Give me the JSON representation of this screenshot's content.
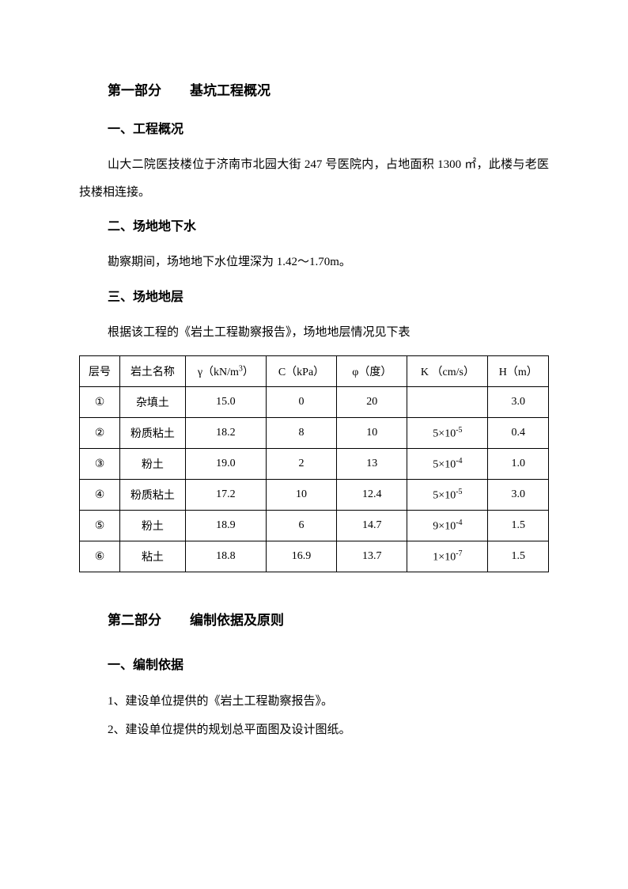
{
  "part1": {
    "title_prefix": "第一部分",
    "title_main": "基坑工程概况",
    "s1": {
      "heading": "一、工程概况",
      "text": "山大二院医技楼位于济南市北园大街 247 号医院内，占地面积 1300 ㎡，此楼与老医技楼相连接。"
    },
    "s2": {
      "heading": "二、场地地下水",
      "text": "勘察期间，场地地下水位埋深为 1.42～1.70m。"
    },
    "s3": {
      "heading": "三、场地地层",
      "intro": "根据该工程的《岩土工程勘察报告》，场地地层情况见下表"
    }
  },
  "table": {
    "columns": [
      {
        "label": "层号",
        "width": "8%"
      },
      {
        "label": "岩土名称",
        "width": "13%"
      },
      {
        "label": "γ（kN/m³）",
        "width": "16%"
      },
      {
        "label": "C（kPa）",
        "width": "14%"
      },
      {
        "label": "φ（度）",
        "width": "14%"
      },
      {
        "label": "K （cm/s）",
        "width": "16%"
      },
      {
        "label": "H（m）",
        "width": "12%"
      }
    ],
    "rows": [
      {
        "layer": "①",
        "name": "杂填土",
        "gamma": "15.0",
        "c": "0",
        "phi": "20",
        "k": "",
        "h": "3.0"
      },
      {
        "layer": "②",
        "name": "粉质粘土",
        "gamma": "18.2",
        "c": "8",
        "phi": "10",
        "k": "5×10⁻⁵",
        "h": "0.4"
      },
      {
        "layer": "③",
        "name": "粉土",
        "gamma": "19.0",
        "c": "2",
        "phi": "13",
        "k": "5×10⁻⁴",
        "h": "1.0"
      },
      {
        "layer": "④",
        "name": "粉质粘土",
        "gamma": "17.2",
        "c": "10",
        "phi": "12.4",
        "k": "5×10⁻⁵",
        "h": "3.0"
      },
      {
        "layer": "⑤",
        "name": "粉土",
        "gamma": "18.9",
        "c": "6",
        "phi": "14.7",
        "k": "9×10⁻⁴",
        "h": "1.5"
      },
      {
        "layer": "⑥",
        "name": "粘土",
        "gamma": "18.8",
        "c": "16.9",
        "phi": "13.7",
        "k": "1×10⁻⁷",
        "h": "1.5"
      }
    ],
    "border_color": "#000000",
    "background_color": "#ffffff",
    "text_color": "#000000",
    "cell_padding": "9px 2px",
    "font_size": 14
  },
  "part2": {
    "title_prefix": "第二部分",
    "title_main": "编制依据及原则",
    "s1": {
      "heading": "一、编制依据",
      "items": [
        "1、建设单位提供的《岩土工程勘察报告》。",
        "2、建设单位提供的规划总平面图及设计图纸。"
      ]
    }
  }
}
